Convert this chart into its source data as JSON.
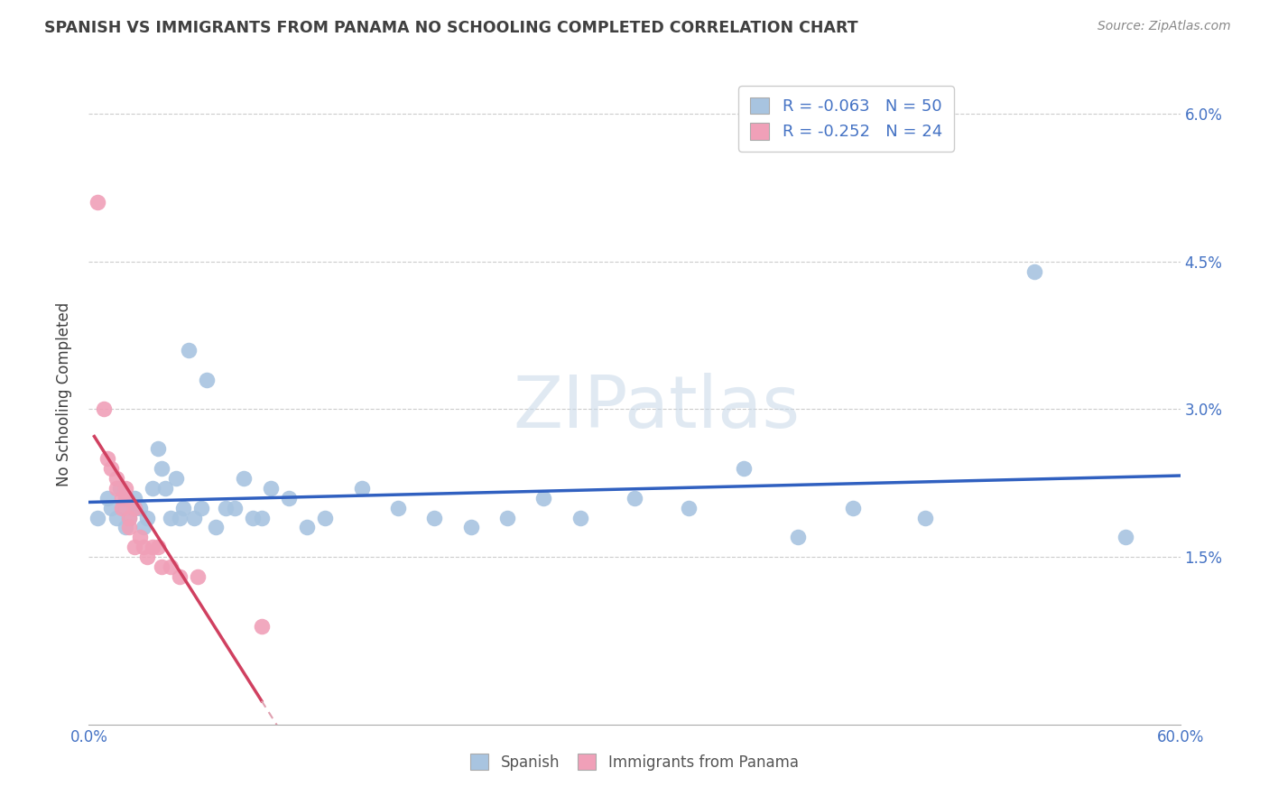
{
  "title": "SPANISH VS IMMIGRANTS FROM PANAMA NO SCHOOLING COMPLETED CORRELATION CHART",
  "source": "Source: ZipAtlas.com",
  "ylabel": "No Schooling Completed",
  "xlim": [
    0.0,
    0.6
  ],
  "ylim": [
    -0.002,
    0.065
  ],
  "xticks": [
    0.0,
    0.6
  ],
  "xticklabels": [
    "0.0%",
    "60.0%"
  ],
  "yticks": [
    0.015,
    0.03,
    0.045,
    0.06
  ],
  "yticklabels": [
    "1.5%",
    "3.0%",
    "4.5%",
    "6.0%"
  ],
  "blue_R": -0.063,
  "blue_N": 50,
  "pink_R": -0.252,
  "pink_N": 24,
  "legend_label_blue": "Spanish",
  "legend_label_pink": "Immigrants from Panama",
  "blue_color": "#a8c4e0",
  "pink_color": "#f0a0b8",
  "blue_line_color": "#3060c0",
  "pink_line_color": "#d04060",
  "pink_dash_color": "#e0a0b0",
  "background_color": "#ffffff",
  "grid_color": "#cccccc",
  "title_color": "#404040",
  "blue_x": [
    0.005,
    0.01,
    0.012,
    0.015,
    0.017,
    0.02,
    0.02,
    0.022,
    0.025,
    0.025,
    0.028,
    0.03,
    0.032,
    0.035,
    0.038,
    0.04,
    0.042,
    0.045,
    0.048,
    0.05,
    0.052,
    0.055,
    0.058,
    0.062,
    0.065,
    0.07,
    0.075,
    0.08,
    0.085,
    0.09,
    0.095,
    0.1,
    0.11,
    0.12,
    0.13,
    0.15,
    0.17,
    0.19,
    0.21,
    0.23,
    0.25,
    0.27,
    0.3,
    0.33,
    0.36,
    0.39,
    0.42,
    0.46,
    0.52,
    0.57
  ],
  "blue_y": [
    0.019,
    0.021,
    0.02,
    0.019,
    0.022,
    0.018,
    0.02,
    0.019,
    0.021,
    0.02,
    0.02,
    0.018,
    0.019,
    0.022,
    0.026,
    0.024,
    0.022,
    0.019,
    0.023,
    0.019,
    0.02,
    0.036,
    0.019,
    0.02,
    0.033,
    0.018,
    0.02,
    0.02,
    0.023,
    0.019,
    0.019,
    0.022,
    0.021,
    0.018,
    0.019,
    0.022,
    0.02,
    0.019,
    0.018,
    0.019,
    0.021,
    0.019,
    0.021,
    0.02,
    0.024,
    0.017,
    0.02,
    0.019,
    0.044,
    0.017
  ],
  "pink_x": [
    0.005,
    0.008,
    0.01,
    0.012,
    0.015,
    0.015,
    0.018,
    0.018,
    0.02,
    0.02,
    0.022,
    0.022,
    0.025,
    0.025,
    0.028,
    0.03,
    0.032,
    0.035,
    0.038,
    0.04,
    0.045,
    0.05,
    0.06,
    0.095
  ],
  "pink_y": [
    0.051,
    0.03,
    0.025,
    0.024,
    0.023,
    0.022,
    0.021,
    0.02,
    0.022,
    0.021,
    0.019,
    0.018,
    0.02,
    0.016,
    0.017,
    0.016,
    0.015,
    0.016,
    0.016,
    0.014,
    0.014,
    0.013,
    0.013,
    0.008
  ]
}
